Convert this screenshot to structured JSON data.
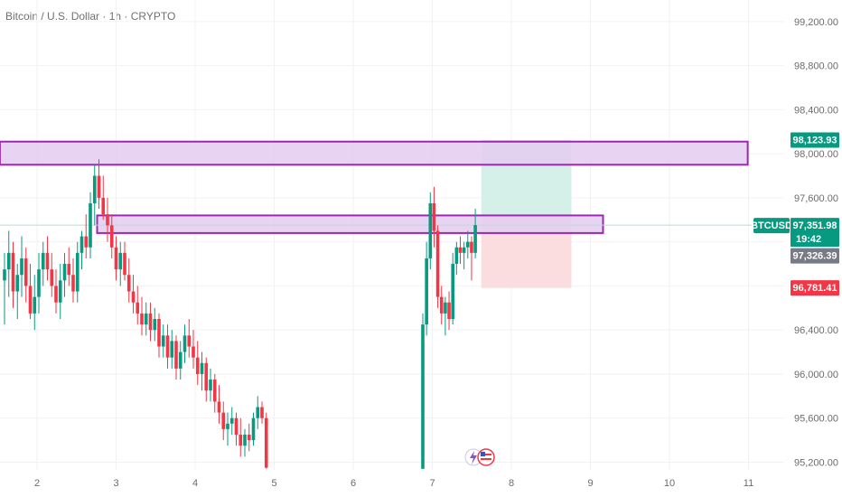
{
  "title": "Bitcoin / U.S. Dollar · 1h · CRYPTO",
  "colors": {
    "up": "#089981",
    "down": "#f23645",
    "zone_fill": "#e4cdf0",
    "zone_stroke": "#9c27b0",
    "target_fill": "#d5efe9",
    "stop_fill": "#fbdde0",
    "price_line": "#b2dfdb",
    "grid": "#f2f2f2"
  },
  "chart_data": {
    "type": "candlestick",
    "symbol": "BTCUSD",
    "x_ticks": [
      "2",
      "3",
      "4",
      "5",
      "6",
      "7",
      "8",
      "9",
      "10",
      "11"
    ],
    "y_ticks": [
      "95,200.00",
      "95,600.00",
      "96,000.00",
      "96,400.00",
      "96,800.00",
      "97,200.00",
      "97,600.00",
      "98,000.00",
      "98,400.00",
      "98,800.00",
      "99,200.00"
    ],
    "ylim": [
      95130,
      99330
    ],
    "price_tags": [
      {
        "label": "98,123.93",
        "value": 98123.93,
        "color": "#089981"
      },
      {
        "label": "97,351.98",
        "value": 97351.98,
        "color": "#089981",
        "sub": "19:42"
      },
      {
        "label": "97,326.39",
        "value": 97326.39,
        "color": "#787b86"
      },
      {
        "label": "96,781.41",
        "value": 96781.41,
        "color": "#f23645"
      }
    ],
    "symbol_tag": "BTCUSD",
    "zones": [
      {
        "x_from": 1.53,
        "x_to": 10.99,
        "low": 97900,
        "high": 98110
      },
      {
        "x_from": 2.76,
        "x_to": 9.16,
        "low": 97280,
        "high": 97440
      }
    ],
    "position": {
      "x_from": 7.62,
      "x_to": 8.76,
      "entry": 97410,
      "target": 98123.93,
      "stop": 96781.41
    },
    "candles": [
      {
        "o": 96850,
        "h": 97100,
        "l": 96450,
        "c": 96950
      },
      {
        "o": 96950,
        "h": 97300,
        "l": 96700,
        "c": 97100
      },
      {
        "o": 97100,
        "h": 97200,
        "l": 96600,
        "c": 96750
      },
      {
        "o": 96750,
        "h": 97000,
        "l": 96500,
        "c": 96900
      },
      {
        "o": 96900,
        "h": 97250,
        "l": 96700,
        "c": 97050
      },
      {
        "o": 97050,
        "h": 97150,
        "l": 96650,
        "c": 96800
      },
      {
        "o": 96800,
        "h": 97000,
        "l": 96500,
        "c": 96550
      },
      {
        "o": 96550,
        "h": 96900,
        "l": 96400,
        "c": 96700
      },
      {
        "o": 96700,
        "h": 97100,
        "l": 96550,
        "c": 96950
      },
      {
        "o": 96950,
        "h": 97200,
        "l": 96800,
        "c": 97100
      },
      {
        "o": 97100,
        "h": 97250,
        "l": 96850,
        "c": 96950
      },
      {
        "o": 96950,
        "h": 97100,
        "l": 96700,
        "c": 96800
      },
      {
        "o": 96800,
        "h": 96950,
        "l": 96550,
        "c": 96650
      },
      {
        "o": 96650,
        "h": 97000,
        "l": 96500,
        "c": 96850
      },
      {
        "o": 96850,
        "h": 97100,
        "l": 96700,
        "c": 97000
      },
      {
        "o": 97000,
        "h": 97150,
        "l": 96800,
        "c": 96900
      },
      {
        "o": 96900,
        "h": 97050,
        "l": 96650,
        "c": 96750
      },
      {
        "o": 96750,
        "h": 97200,
        "l": 96650,
        "c": 97100
      },
      {
        "o": 97100,
        "h": 97300,
        "l": 96950,
        "c": 97250
      },
      {
        "o": 97250,
        "h": 97450,
        "l": 97050,
        "c": 97150
      },
      {
        "o": 97150,
        "h": 97650,
        "l": 97050,
        "c": 97550
      },
      {
        "o": 97550,
        "h": 97900,
        "l": 97350,
        "c": 97800
      },
      {
        "o": 97800,
        "h": 97950,
        "l": 97500,
        "c": 97600
      },
      {
        "o": 97600,
        "h": 97800,
        "l": 97400,
        "c": 97450
      },
      {
        "o": 97450,
        "h": 97600,
        "l": 97200,
        "c": 97350
      },
      {
        "o": 97350,
        "h": 97450,
        "l": 97050,
        "c": 97150
      },
      {
        "o": 97150,
        "h": 97250,
        "l": 96850,
        "c": 96950
      },
      {
        "o": 96950,
        "h": 97200,
        "l": 96800,
        "c": 97100
      },
      {
        "o": 97100,
        "h": 97200,
        "l": 96850,
        "c": 96900
      },
      {
        "o": 96900,
        "h": 97050,
        "l": 96650,
        "c": 96750
      },
      {
        "o": 96750,
        "h": 96900,
        "l": 96550,
        "c": 96650
      },
      {
        "o": 96650,
        "h": 96800,
        "l": 96450,
        "c": 96550
      },
      {
        "o": 96550,
        "h": 96700,
        "l": 96350,
        "c": 96450
      },
      {
        "o": 96450,
        "h": 96650,
        "l": 96350,
        "c": 96550
      },
      {
        "o": 96550,
        "h": 96650,
        "l": 96300,
        "c": 96400
      },
      {
        "o": 96400,
        "h": 96600,
        "l": 96300,
        "c": 96500
      },
      {
        "o": 96500,
        "h": 96550,
        "l": 96150,
        "c": 96250
      },
      {
        "o": 96250,
        "h": 96450,
        "l": 96150,
        "c": 96350
      },
      {
        "o": 96350,
        "h": 96450,
        "l": 96050,
        "c": 96150
      },
      {
        "o": 96150,
        "h": 96400,
        "l": 96050,
        "c": 96300
      },
      {
        "o": 96300,
        "h": 96350,
        "l": 95950,
        "c": 96050
      },
      {
        "o": 96050,
        "h": 96300,
        "l": 95950,
        "c": 96200
      },
      {
        "o": 96200,
        "h": 96450,
        "l": 96100,
        "c": 96350
      },
      {
        "o": 96350,
        "h": 96500,
        "l": 96150,
        "c": 96250
      },
      {
        "o": 96250,
        "h": 96400,
        "l": 96050,
        "c": 96150
      },
      {
        "o": 96150,
        "h": 96300,
        "l": 95900,
        "c": 96000
      },
      {
        "o": 96000,
        "h": 96200,
        "l": 95850,
        "c": 96100
      },
      {
        "o": 96100,
        "h": 96150,
        "l": 95750,
        "c": 95850
      },
      {
        "o": 95850,
        "h": 96050,
        "l": 95750,
        "c": 95950
      },
      {
        "o": 95950,
        "h": 96000,
        "l": 95650,
        "c": 95750
      },
      {
        "o": 95750,
        "h": 95900,
        "l": 95550,
        "c": 95650
      },
      {
        "o": 95650,
        "h": 95750,
        "l": 95400,
        "c": 95500
      },
      {
        "o": 95500,
        "h": 95650,
        "l": 95350,
        "c": 95550
      },
      {
        "o": 95550,
        "h": 95700,
        "l": 95450,
        "c": 95600
      },
      {
        "o": 95600,
        "h": 95650,
        "l": 95350,
        "c": 95450
      },
      {
        "o": 95450,
        "h": 95600,
        "l": 95250,
        "c": 95350
      },
      {
        "o": 95350,
        "h": 95500,
        "l": 95250,
        "c": 95450
      },
      {
        "o": 95450,
        "h": 95550,
        "l": 95300,
        "c": 95400
      },
      {
        "o": 95400,
        "h": 95650,
        "l": 95350,
        "c": 95600
      },
      {
        "o": 95600,
        "h": 95800,
        "l": 95500,
        "c": 95700
      },
      {
        "o": 95700,
        "h": 95750,
        "l": 95550,
        "c": 95600
      },
      {
        "o": 95600,
        "h": 95650,
        "l": 95140,
        "c": 95150
      },
      {
        "o": 95140,
        "h": 96550,
        "l": 95140,
        "c": 96450
      },
      {
        "o": 96450,
        "h": 97200,
        "l": 96350,
        "c": 97050
      },
      {
        "o": 97050,
        "h": 97650,
        "l": 96950,
        "c": 97550
      },
      {
        "o": 97550,
        "h": 97700,
        "l": 97150,
        "c": 97300
      },
      {
        "o": 97300,
        "h": 97350,
        "l": 96600,
        "c": 96700
      },
      {
        "o": 96700,
        "h": 96800,
        "l": 96450,
        "c": 96550
      },
      {
        "o": 96550,
        "h": 96700,
        "l": 96350,
        "c": 96650
      },
      {
        "o": 96650,
        "h": 96750,
        "l": 96400,
        "c": 96500
      },
      {
        "o": 96500,
        "h": 97100,
        "l": 96450,
        "c": 97000
      },
      {
        "o": 97000,
        "h": 97200,
        "l": 96900,
        "c": 97150
      },
      {
        "o": 97150,
        "h": 97250,
        "l": 97000,
        "c": 97100
      },
      {
        "o": 97100,
        "h": 97200,
        "l": 96950,
        "c": 97150
      },
      {
        "o": 97150,
        "h": 97300,
        "l": 97050,
        "c": 97200
      },
      {
        "o": 97200,
        "h": 97250,
        "l": 96850,
        "c": 97100
      },
      {
        "o": 97100,
        "h": 97500,
        "l": 97050,
        "c": 97352
      }
    ]
  }
}
